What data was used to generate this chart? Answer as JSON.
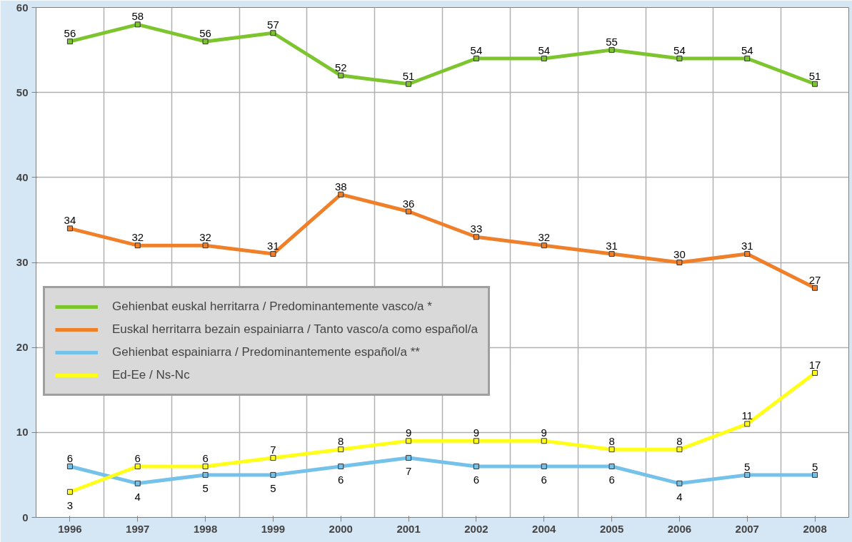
{
  "chart_data": {
    "type": "line",
    "categories": [
      "1996",
      "1997",
      "1998",
      "1999",
      "2000",
      "2001",
      "2002",
      "2004",
      "2005",
      "2006",
      "2007",
      "2008"
    ],
    "ylim": [
      0,
      60
    ],
    "yticks": [
      0,
      10,
      20,
      30,
      40,
      50,
      60
    ],
    "grid": true,
    "legend": "left",
    "marker": "square",
    "line_style": "solid",
    "data_labels": true,
    "series": [
      {
        "name": "Gehienbat euskal herritarra / Predominantemente vasco/a *",
        "color": "#7dc52e",
        "values": [
          56,
          58,
          56,
          57,
          52,
          51,
          54,
          54,
          55,
          54,
          54,
          51
        ]
      },
      {
        "name": "Euskal herritarra bezain espainiarra / Tanto vasco/a como español/a",
        "color": "#f07f2a",
        "values": [
          34,
          32,
          32,
          31,
          38,
          36,
          33,
          32,
          31,
          30,
          31,
          27
        ]
      },
      {
        "name": "Gehienbat espainiarra / Predominantemente español/a **",
        "color": "#74c1ea",
        "values": [
          6,
          4,
          5,
          5,
          6,
          7,
          6,
          6,
          6,
          4,
          5,
          5
        ]
      },
      {
        "name": "Ed-Ee / Ns-Nc",
        "color": "#ffff1a",
        "values": [
          3,
          6,
          6,
          7,
          8,
          9,
          9,
          9,
          8,
          8,
          11,
          17
        ]
      }
    ]
  }
}
